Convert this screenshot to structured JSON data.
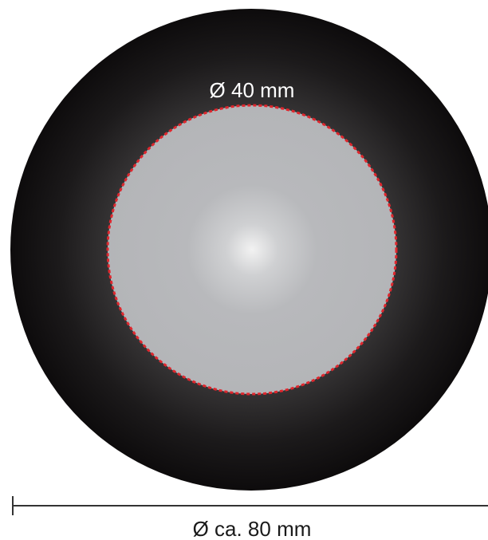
{
  "inner_label": "Ø 40 mm",
  "outer_label": "Ø ca. 80 mm",
  "colors": {
    "outer_disc_edge": "#0d0b0c",
    "outer_disc_glow": "#6a6869",
    "inner_disc": "#b5b6b9",
    "inner_disc_center": "#f2f2f2",
    "dashed_outline": "#e0262d",
    "dimension_line": "#333333"
  }
}
